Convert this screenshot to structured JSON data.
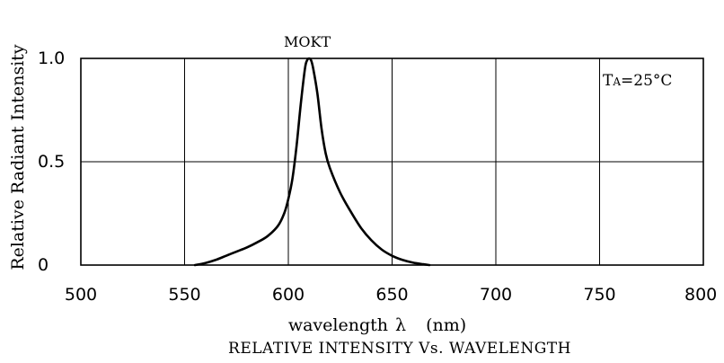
{
  "chart_data": {
    "type": "line",
    "title": "",
    "caption": "RELATIVE INTENSITY Vs. WAVELENGTH",
    "xlabel": "wavelength",
    "xlabel_symbol": "λ",
    "xlabel_unit": "(nm)",
    "ylabel": "Relative Radiant Intensity",
    "xlim": [
      500,
      800
    ],
    "ylim": [
      0,
      1.0
    ],
    "x_ticks": [
      500,
      550,
      600,
      650,
      700,
      750,
      800
    ],
    "x_tick_labels": [
      "500",
      "550",
      "600",
      "650",
      "700",
      "750",
      "800"
    ],
    "y_ticks": [
      0,
      0.5,
      1.0
    ],
    "y_tick_labels": [
      "0",
      "0.5",
      "1.0"
    ],
    "grid": true,
    "series": [
      {
        "name": "MOKT",
        "x": [
          555,
          560,
          565,
          570,
          575,
          580,
          585,
          590,
          595,
          598,
          600,
          602,
          604,
          606,
          608,
          609,
          610,
          611,
          612,
          614,
          616,
          618,
          620,
          625,
          630,
          635,
          640,
          645,
          650,
          655,
          660,
          665,
          668
        ],
        "y": [
          0.0,
          0.01,
          0.025,
          0.045,
          0.065,
          0.085,
          0.11,
          0.14,
          0.19,
          0.25,
          0.32,
          0.42,
          0.58,
          0.78,
          0.95,
          0.99,
          1.0,
          0.99,
          0.95,
          0.83,
          0.66,
          0.54,
          0.47,
          0.35,
          0.26,
          0.18,
          0.12,
          0.075,
          0.045,
          0.025,
          0.012,
          0.004,
          0.0
        ]
      }
    ],
    "annotation": {
      "text_main": "T",
      "text_sub": "A",
      "text_rest": "=25°C",
      "position": "top-right"
    }
  }
}
